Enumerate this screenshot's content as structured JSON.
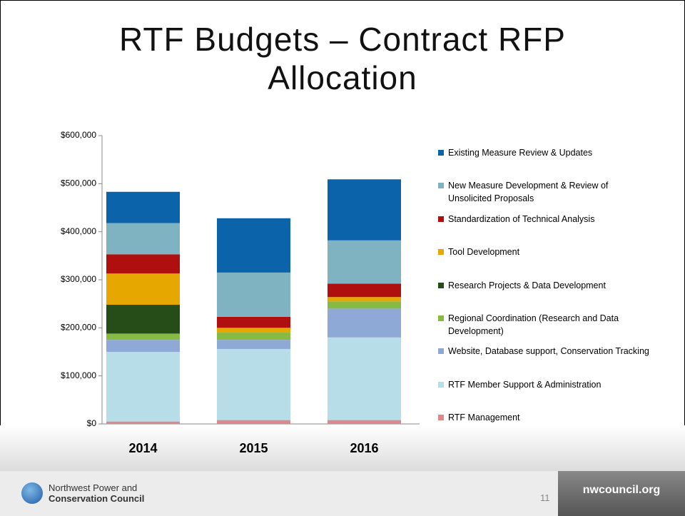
{
  "chart_data": {
    "type": "stacked_bar",
    "title": "RTF Budgets – Contract RFP Allocation",
    "categories": [
      "2014",
      "2015",
      "2016"
    ],
    "ylim": [
      0,
      600000
    ],
    "yticks": [
      {
        "value": 0,
        "label": "$0"
      },
      {
        "value": 100000,
        "label": "$100,000"
      },
      {
        "value": 200000,
        "label": "$200,000"
      },
      {
        "value": 300000,
        "label": "$300,000"
      },
      {
        "value": 400000,
        "label": "$400,000"
      },
      {
        "value": 500000,
        "label": "$500,000"
      },
      {
        "value": 600000,
        "label": "$600,000"
      }
    ],
    "legend": "right",
    "series": [
      {
        "name": "RTF Management",
        "color": "#d98a8c",
        "values": [
          5000,
          8000,
          8000
        ]
      },
      {
        "name": "RTF Member Support & Administration",
        "color": "#b7dde8",
        "values": [
          145000,
          148000,
          172000
        ]
      },
      {
        "name": "Website, Database support, Conservation Tracking",
        "color": "#8ea9d6",
        "values": [
          25000,
          19000,
          60000
        ]
      },
      {
        "name": "Regional Coordination (Research and Data Development)",
        "color": "#86ba43",
        "values": [
          13000,
          15000,
          15000
        ]
      },
      {
        "name": "Research Projects & Data Development",
        "color": "#264d17",
        "values": [
          60000,
          0,
          0
        ]
      },
      {
        "name": "Tool Development",
        "color": "#e6a800",
        "values": [
          65000,
          10000,
          9000
        ]
      },
      {
        "name": "Standardization of Technical Analysis",
        "color": "#b00f0f",
        "values": [
          40000,
          23000,
          28000
        ]
      },
      {
        "name": "New Measure Development & Review of Unsolicited Proposals",
        "color": "#7fb3c2",
        "values": [
          65000,
          92000,
          90000
        ]
      },
      {
        "name": "Existing Measure Review & Updates",
        "color": "#0b63a9",
        "values": [
          65000,
          113000,
          127000
        ]
      }
    ]
  },
  "footer": {
    "logo_line1": "Northwest Power and",
    "logo_line2": "Conservation Council",
    "page_number": "11",
    "site": "nwcouncil.org"
  }
}
